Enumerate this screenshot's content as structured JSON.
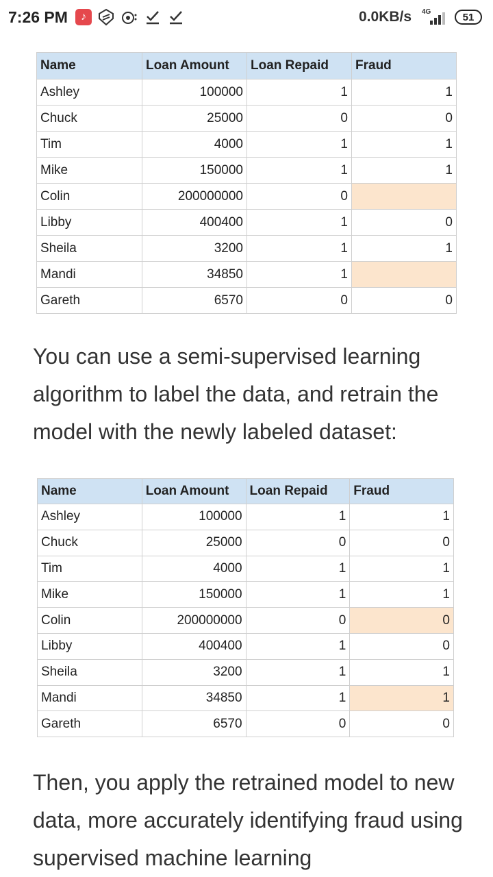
{
  "status_bar": {
    "time": "7:26 PM",
    "network_speed": "0.0KB/s",
    "network_type": "4G",
    "battery": "51",
    "icons": [
      "tiktok-icon",
      "shield-icon",
      "screen-record-icon",
      "download-done-icon",
      "download-done-icon"
    ]
  },
  "table_headers": [
    "Name",
    "Loan Amount",
    "Loan Repaid",
    "Fraud"
  ],
  "table1": {
    "rows": [
      {
        "name": "Ashley",
        "amount": "100000",
        "repaid": "1",
        "fraud": "1",
        "highlight": false
      },
      {
        "name": "Chuck",
        "amount": "25000",
        "repaid": "0",
        "fraud": "0",
        "highlight": false
      },
      {
        "name": "Tim",
        "amount": "4000",
        "repaid": "1",
        "fraud": "1",
        "highlight": false
      },
      {
        "name": "Mike",
        "amount": "150000",
        "repaid": "1",
        "fraud": "1",
        "highlight": false
      },
      {
        "name": "Colin",
        "amount": "200000000",
        "repaid": "0",
        "fraud": "",
        "highlight": true
      },
      {
        "name": "Libby",
        "amount": "400400",
        "repaid": "1",
        "fraud": "0",
        "highlight": false
      },
      {
        "name": "Sheila",
        "amount": "3200",
        "repaid": "1",
        "fraud": "1",
        "highlight": false
      },
      {
        "name": "Mandi",
        "amount": "34850",
        "repaid": "1",
        "fraud": "",
        "highlight": true
      },
      {
        "name": "Gareth",
        "amount": "6570",
        "repaid": "0",
        "fraud": "0",
        "highlight": false
      }
    ]
  },
  "paragraph1": "You can use a semi-supervised learning algorithm to label the data, and retrain the model with the newly labeled dataset:",
  "table2": {
    "rows": [
      {
        "name": "Ashley",
        "amount": "100000",
        "repaid": "1",
        "fraud": "1",
        "highlight": false
      },
      {
        "name": "Chuck",
        "amount": "25000",
        "repaid": "0",
        "fraud": "0",
        "highlight": false
      },
      {
        "name": "Tim",
        "amount": "4000",
        "repaid": "1",
        "fraud": "1",
        "highlight": false
      },
      {
        "name": "Mike",
        "amount": "150000",
        "repaid": "1",
        "fraud": "1",
        "highlight": false
      },
      {
        "name": "Colin",
        "amount": "200000000",
        "repaid": "0",
        "fraud": "0",
        "highlight": true
      },
      {
        "name": "Libby",
        "amount": "400400",
        "repaid": "1",
        "fraud": "0",
        "highlight": false
      },
      {
        "name": "Sheila",
        "amount": "3200",
        "repaid": "1",
        "fraud": "1",
        "highlight": false
      },
      {
        "name": "Mandi",
        "amount": "34850",
        "repaid": "1",
        "fraud": "1",
        "highlight": true
      },
      {
        "name": "Gareth",
        "amount": "6570",
        "repaid": "0",
        "fraud": "0",
        "highlight": false
      }
    ]
  },
  "paragraph2": "Then, you apply the retrained model to new data, more accurately identifying fraud using supervised machine learning"
}
